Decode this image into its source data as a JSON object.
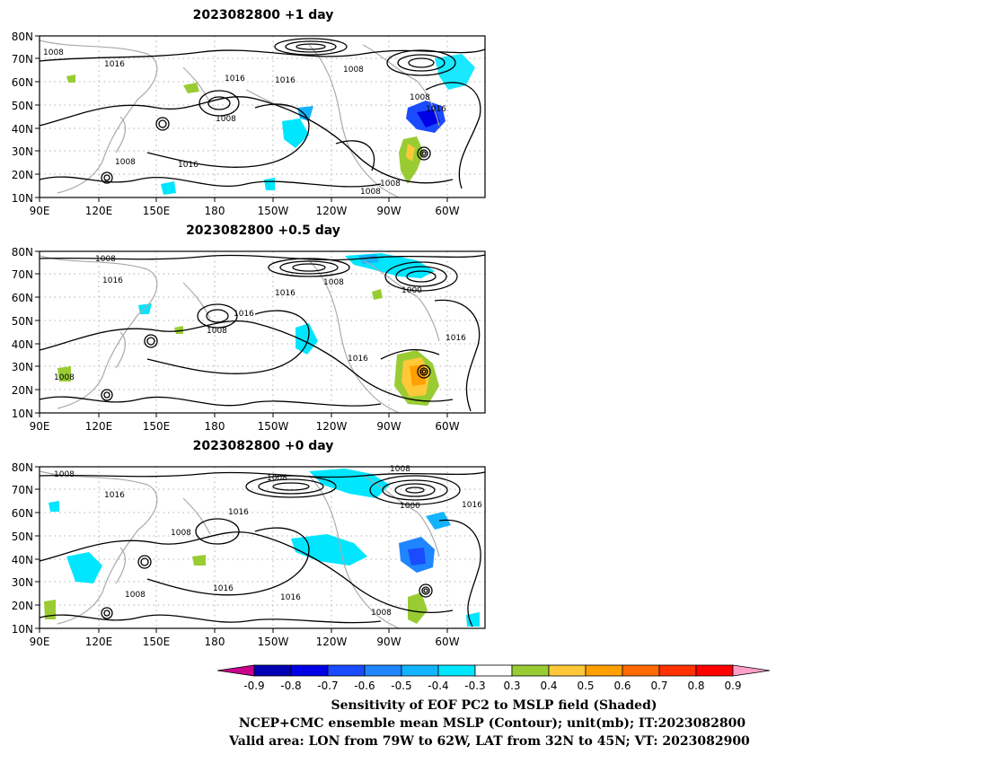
{
  "panels": [
    {
      "title": "2023082800  +1 day",
      "lat_ticks": [
        "80N",
        "70N",
        "60N",
        "50N",
        "40N",
        "30N",
        "20N",
        "10N"
      ],
      "lon_ticks": [
        "90E",
        "120E",
        "150E",
        "180",
        "150W",
        "120W",
        "90W",
        "60W"
      ],
      "contour_labels": [
        "1008",
        "1016",
        "1016",
        "1016",
        "1008",
        "1008",
        "1016",
        "1008",
        "1016",
        "1008",
        "1008",
        "1008"
      ]
    },
    {
      "title": "2023082800  +0.5 day",
      "lat_ticks": [
        "80N",
        "70N",
        "60N",
        "50N",
        "40N",
        "30N",
        "20N",
        "10N"
      ],
      "lon_ticks": [
        "90E",
        "120E",
        "150E",
        "180",
        "150W",
        "120W",
        "90W",
        "60W"
      ],
      "contour_labels": [
        "1008",
        "1016",
        "1016",
        "1016",
        "1008",
        "1008",
        "1000",
        "1016",
        "1016",
        "1008"
      ]
    },
    {
      "title": "2023082800  +0 day",
      "lat_ticks": [
        "80N",
        "70N",
        "60N",
        "50N",
        "40N",
        "30N",
        "20N",
        "10N"
      ],
      "lon_ticks": [
        "90E",
        "120E",
        "150E",
        "180",
        "150W",
        "120W",
        "90W",
        "60W"
      ],
      "contour_labels": [
        "1008",
        "1016",
        "1008",
        "1016",
        "1008",
        "1008",
        "1000",
        "1016",
        "1016",
        "1008",
        "1016",
        "1008"
      ]
    }
  ],
  "colorbar": {
    "labels": [
      "-0.9",
      "-0.8",
      "-0.7",
      "-0.6",
      "-0.5",
      "-0.4",
      "-0.3",
      "0.3",
      "0.4",
      "0.5",
      "0.6",
      "0.7",
      "0.8",
      "0.9"
    ],
    "colors": [
      "#0000b4",
      "#0000e6",
      "#1a4bff",
      "#1f86ff",
      "#13b4ff",
      "#00e6ff",
      "#ffffff",
      "#99cc33",
      "#ffc838",
      "#ffa000",
      "#ff6a00",
      "#ff3200",
      "#ff0000"
    ],
    "low_color": "#c8008c",
    "high_color": "#ffa0c8"
  },
  "caption": [
    "Sensitivity of EOF PC2 to MSLP field (Shaded)",
    "NCEP+CMC ensemble mean MSLP (Contour); unit(mb); IT:2023082800",
    "Valid area: LON from 79W to 62W, LAT from 32N to 45N; VT: 2023082900"
  ]
}
